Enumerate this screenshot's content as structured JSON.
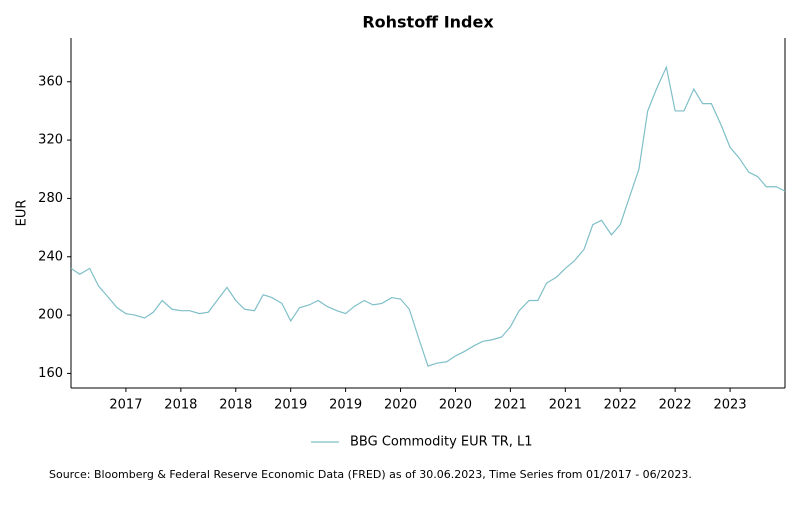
{
  "chart_data": {
    "type": "line",
    "title": "Rohstoff Index",
    "y_label": "EUR",
    "source": "Source: Bloomberg & Federal Reserve Economic Data (FRED) as of 30.06.2023, Time Series from 01/2017 - 06/2023.",
    "x": [
      2017,
      2017.08,
      2017.17,
      2017.25,
      2017.33,
      2017.42,
      2017.5,
      2017.58,
      2017.67,
      2017.75,
      2017.83,
      2017.92,
      2018,
      2018.08,
      2018.17,
      2018.25,
      2018.33,
      2018.42,
      2018.5,
      2018.58,
      2018.67,
      2018.75,
      2018.83,
      2018.92,
      2019,
      2019.08,
      2019.17,
      2019.25,
      2019.33,
      2019.42,
      2019.5,
      2019.58,
      2019.67,
      2019.75,
      2019.83,
      2019.92,
      2020,
      2020.08,
      2020.17,
      2020.25,
      2020.33,
      2020.42,
      2020.5,
      2020.58,
      2020.67,
      2020.75,
      2020.83,
      2020.92,
      2021,
      2021.08,
      2021.17,
      2021.25,
      2021.33,
      2021.42,
      2021.5,
      2021.58,
      2021.67,
      2021.75,
      2021.83,
      2021.92,
      2022,
      2022.08,
      2022.17,
      2022.25,
      2022.33,
      2022.42,
      2022.5,
      2022.58,
      2022.67,
      2022.75,
      2022.83,
      2022.92,
      2023,
      2023.08,
      2023.17,
      2023.25,
      2023.33,
      2023.42,
      2023.5
    ],
    "series": [
      {
        "name": "BBG Commodity EUR TR, L1",
        "color": "#7fbfc8",
        "values": [
          232,
          228,
          232,
          220,
          213,
          205,
          201,
          200,
          198,
          202,
          210,
          204,
          203,
          203,
          201,
          202,
          210,
          219,
          210,
          204,
          203,
          214,
          212,
          208,
          196,
          205,
          207,
          210,
          206,
          203,
          201,
          206,
          210,
          207,
          208,
          212,
          211,
          204,
          183,
          165,
          167,
          168,
          172,
          175,
          179,
          182,
          183,
          185,
          192,
          203,
          210,
          210,
          222,
          226,
          232,
          237,
          245,
          262,
          265,
          255,
          262,
          280,
          300,
          340,
          355,
          370,
          340,
          340,
          355,
          345,
          345,
          330,
          315,
          308,
          298,
          295,
          288,
          288,
          285
        ]
      }
    ],
    "xlim": [
      2017,
      2023.5
    ],
    "xticks": [
      {
        "value": 2017.5,
        "label": "2017"
      },
      {
        "value": 2018,
        "label": "2018"
      },
      {
        "value": 2018.5,
        "label": "2018"
      },
      {
        "value": 2019,
        "label": "2019"
      },
      {
        "value": 2019.5,
        "label": "2019"
      },
      {
        "value": 2020,
        "label": "2020"
      },
      {
        "value": 2020.5,
        "label": "2020"
      },
      {
        "value": 2021,
        "label": "2021"
      },
      {
        "value": 2021.5,
        "label": "2021"
      },
      {
        "value": 2022,
        "label": "2022"
      },
      {
        "value": 2022.5,
        "label": "2022"
      },
      {
        "value": 2023,
        "label": "2023"
      }
    ],
    "ylim": [
      150,
      390
    ],
    "yticks": [
      160,
      200,
      240,
      280,
      320,
      360
    ],
    "grid": false,
    "legend": "bottom"
  }
}
